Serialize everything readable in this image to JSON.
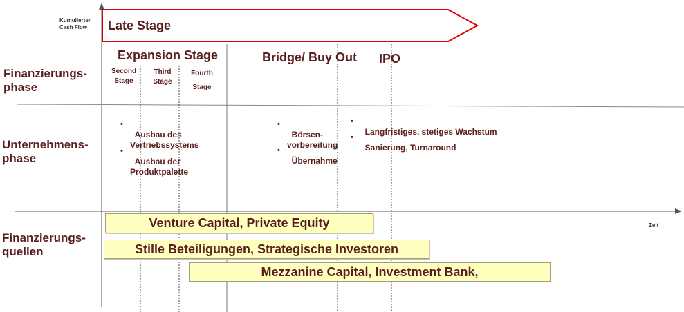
{
  "axis": {
    "y_label": "Kumulierter Cash Flow",
    "x_label": "Zeit"
  },
  "arrow": {
    "label": "Late Stage"
  },
  "rows": {
    "finanzierungsphase": "Finanzierungs-\nphase",
    "unternehmensphase": "Unternehmens-\nphase",
    "finanzierungsquellen": "Finanzierungs-\nquellen"
  },
  "stages": {
    "expansion": "Expansion Stage",
    "second": "Second\nStage",
    "third": "Third\nStage",
    "fourth": "Fourth\nStage",
    "bridge": "Bridge/ Buy Out",
    "ipo": "IPO"
  },
  "bullets": {
    "expansion": [
      "Ausbau des\nVertriebssystems",
      "Ausbau der\nProduktpalette"
    ],
    "bridge": [
      "Börsen-\nvorbereitung",
      "Übernahme"
    ],
    "ipo": [
      "Langfristiges, stetiges Wachstum",
      "Sanierung, Turnaround"
    ]
  },
  "sources": [
    "Venture Capital, Private Equity",
    "Stille Beteiligungen, Strategische Investoren",
    "Mezzanine Capital, Investment Bank,"
  ],
  "colors": {
    "text": "#5a1e1e",
    "arrow_border": "#e00000",
    "bar_fill": "#ffffc0"
  }
}
